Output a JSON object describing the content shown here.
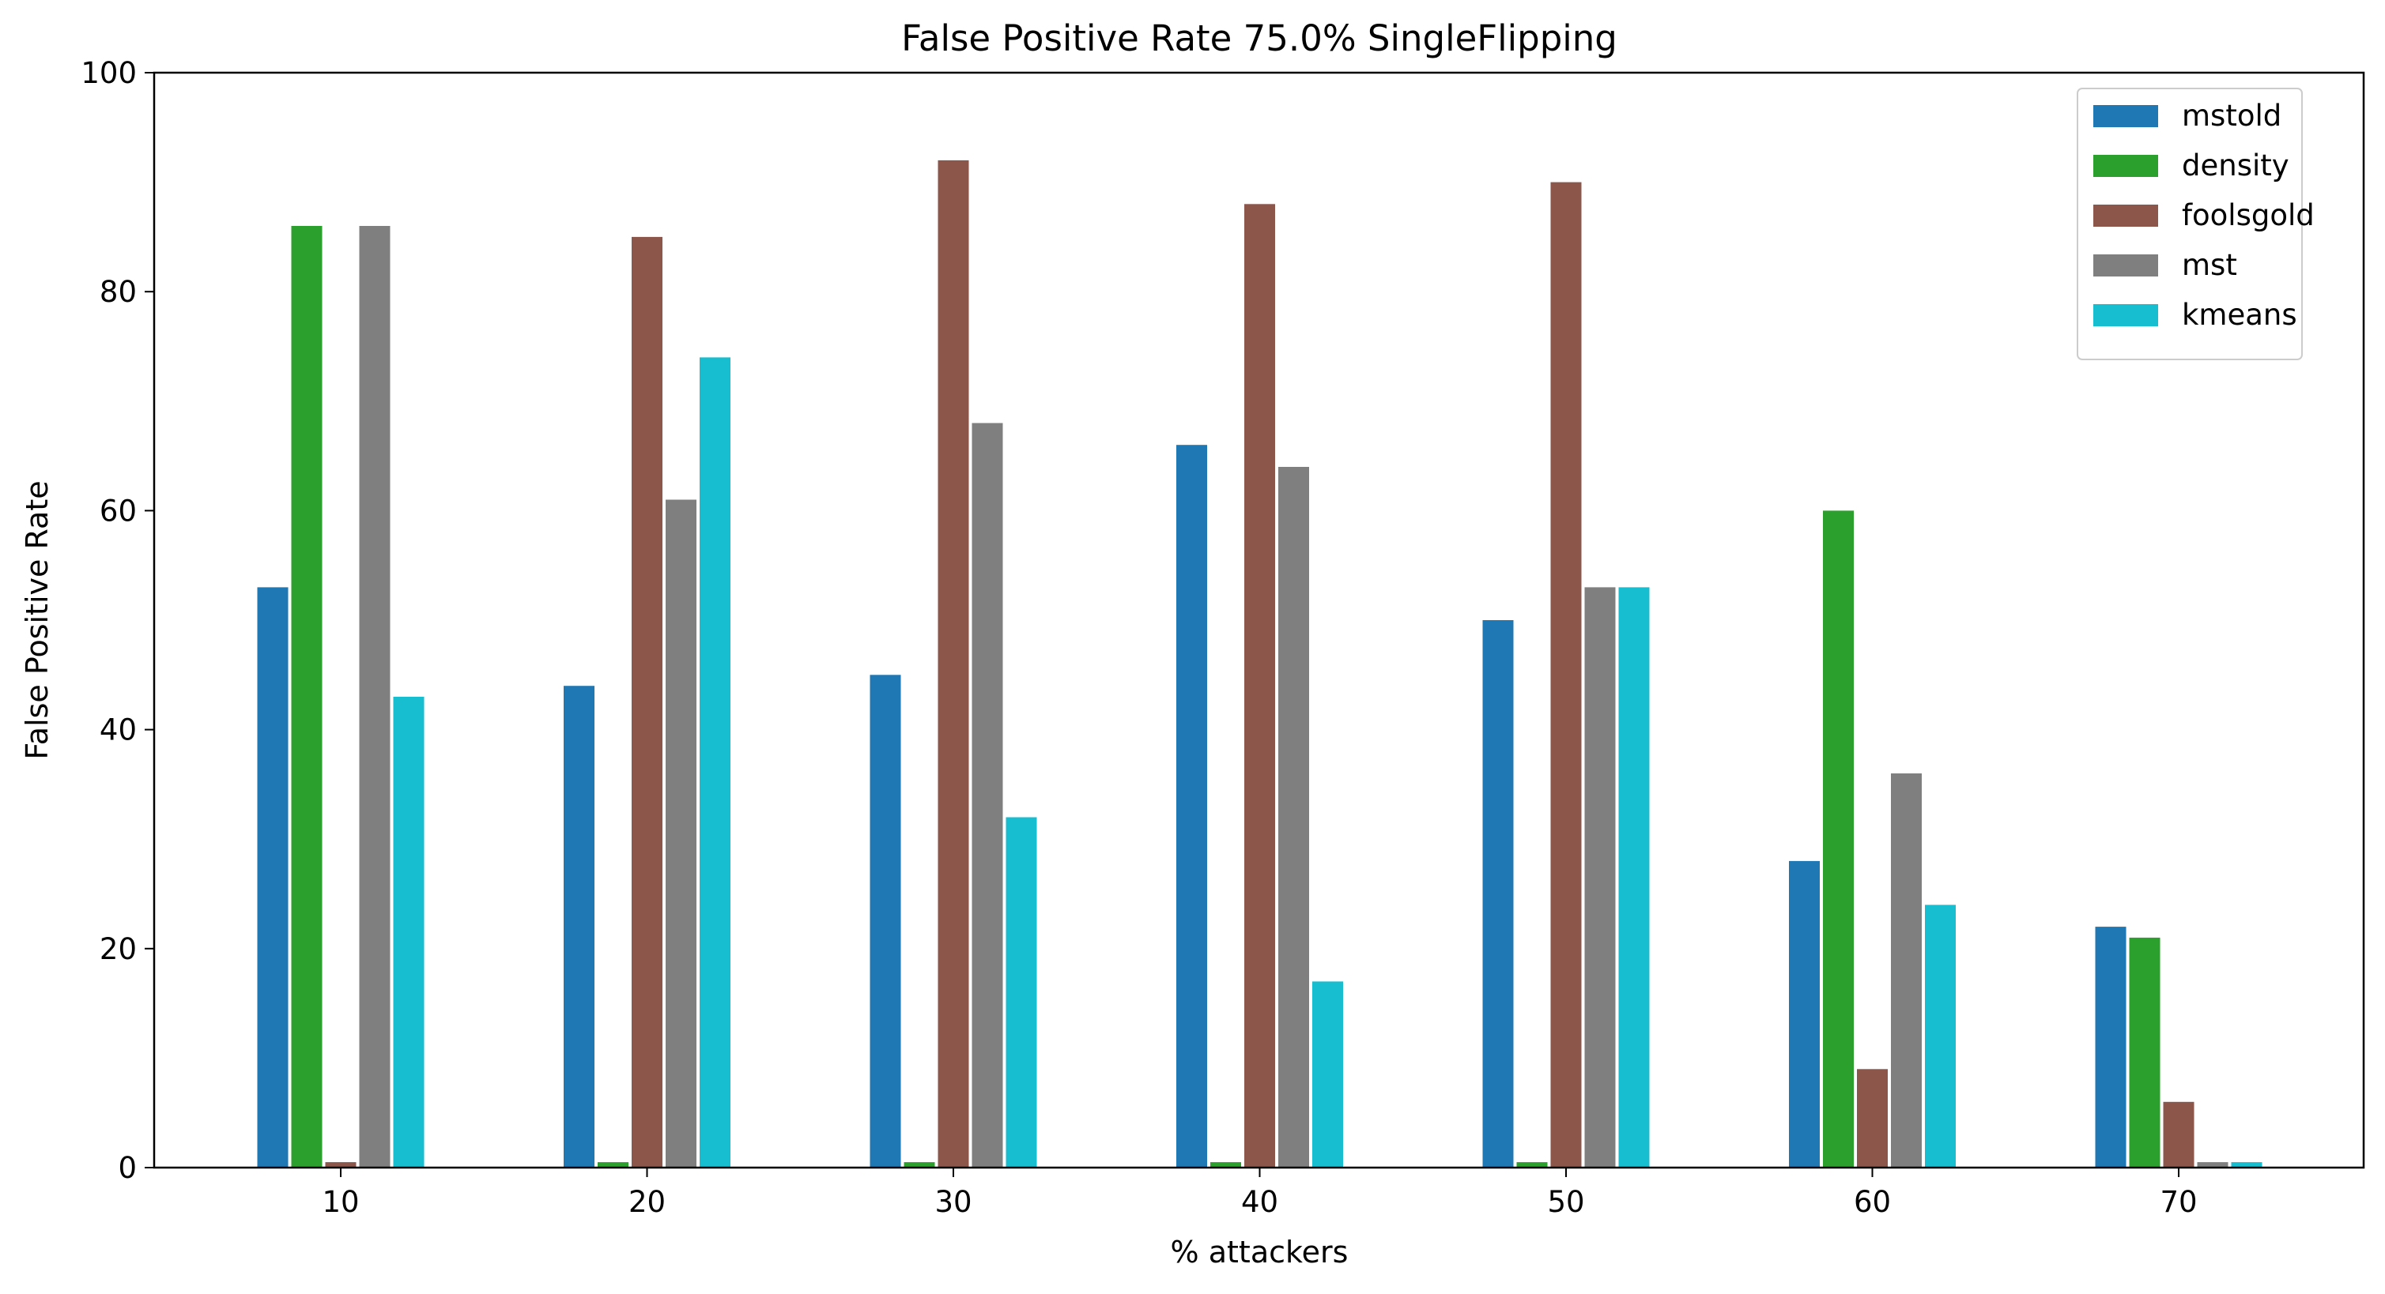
{
  "chart_data": {
    "type": "bar",
    "title": "False Positive Rate 75.0% SingleFlipping",
    "xlabel": "% attackers",
    "ylabel": "False Positive Rate",
    "categories": [
      "10",
      "20",
      "30",
      "40",
      "50",
      "60",
      "70"
    ],
    "ylim": [
      0,
      100
    ],
    "yticks": [
      "0",
      "20",
      "40",
      "60",
      "80",
      "100"
    ],
    "grid": false,
    "legend_position": "top-right",
    "series": [
      {
        "name": "mstold",
        "color": "#1f77b4",
        "values": [
          53,
          44,
          45,
          66,
          50,
          28,
          22
        ]
      },
      {
        "name": "density",
        "color": "#2ca02c",
        "values": [
          86,
          0.5,
          0.5,
          0.5,
          0.5,
          60,
          21
        ]
      },
      {
        "name": "foolsgold",
        "color": "#8c564b",
        "values": [
          0.5,
          85,
          92,
          88,
          90,
          9,
          6
        ]
      },
      {
        "name": "mst",
        "color": "#7f7f7f",
        "values": [
          86,
          61,
          68,
          64,
          53,
          36,
          0.5
        ]
      },
      {
        "name": "kmeans",
        "color": "#17becf",
        "values": [
          43,
          74,
          32,
          17,
          53,
          24,
          0.5
        ]
      }
    ]
  }
}
